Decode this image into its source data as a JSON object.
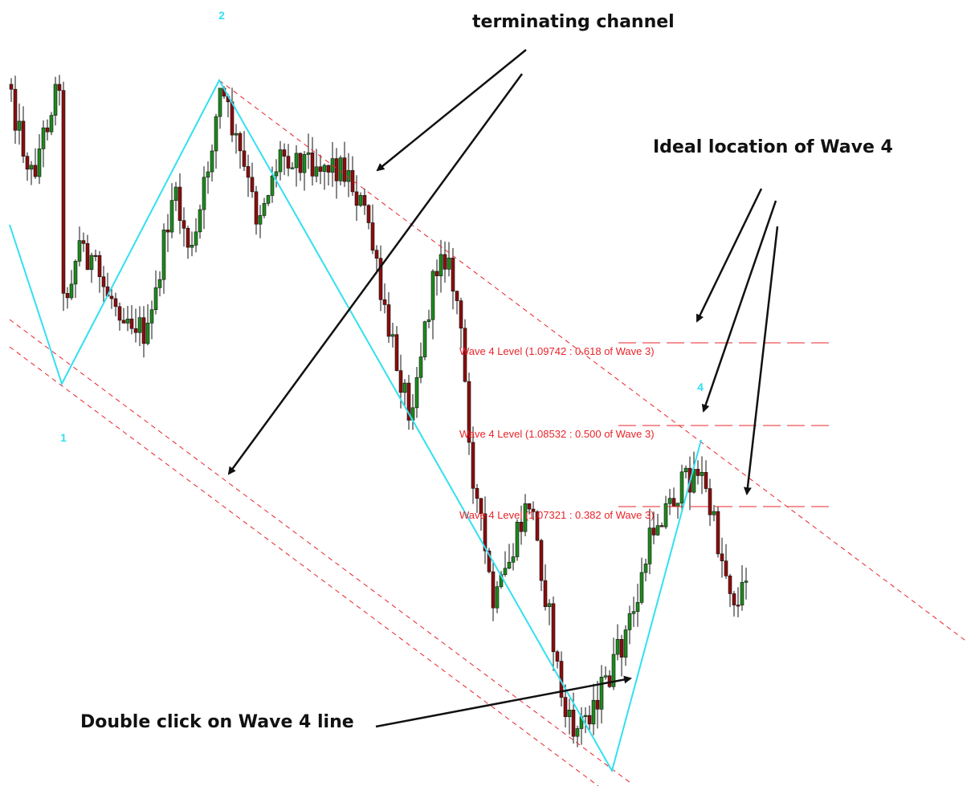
{
  "annotations": {
    "terminating_channel": "terminating channel",
    "ideal_location": "Ideal location of Wave 4",
    "double_click": "Double click on Wave 4 line"
  },
  "wave_labels": [
    "1",
    "2",
    "4"
  ],
  "levels": [
    "Wave 4 Level (1.09742 : 0.618 of Wave 3)",
    "Wave 4 Level (1.08532 : 0.500 of Wave 3)",
    "Wave 4 Level (1.07321 : 0.382 of Wave 3)"
  ]
}
